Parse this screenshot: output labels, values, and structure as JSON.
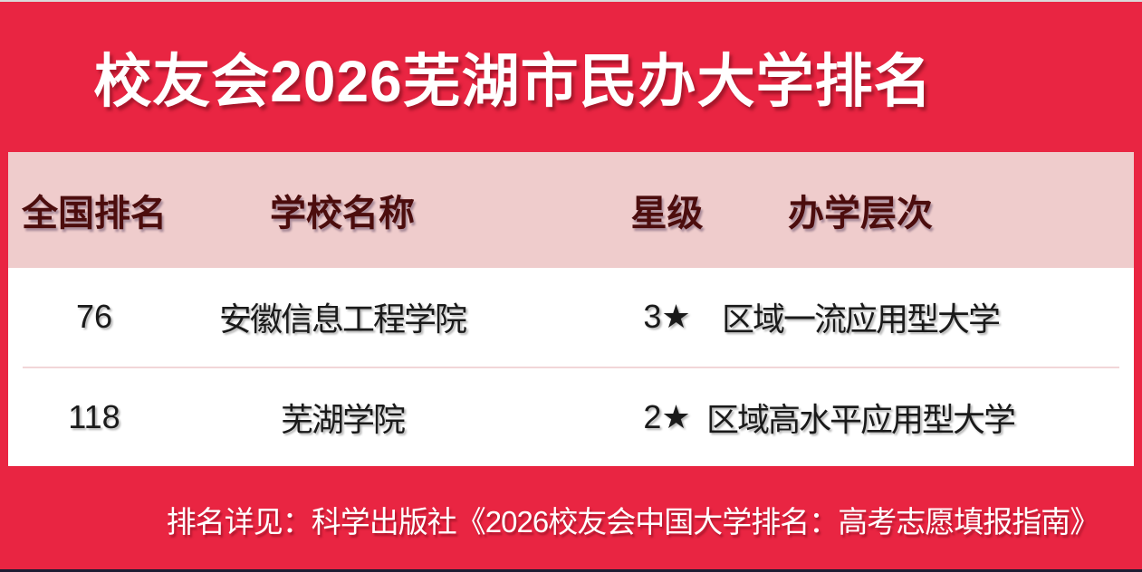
{
  "title": "校友会2026芜湖市民办大学排名",
  "table": {
    "headers": {
      "rank": "全国排名",
      "school": "学校名称",
      "star": "星级",
      "level": "办学层次"
    },
    "rows": [
      {
        "rank": "76",
        "school": "安徽信息工程学院",
        "star": "3★",
        "level": "区域一流应用型大学"
      },
      {
        "rank": "118",
        "school": "芜湖学院",
        "star": "2★",
        "level": "区域高水平应用型大学"
      }
    ]
  },
  "footer": {
    "note": "排名详见：科学出版社《2026校友会中国大学排名：高考志愿填报指南》"
  },
  "colors": {
    "accent_red": "#e92542",
    "header_pink": "#efcccc",
    "header_text_maroon": "#4c0d0d",
    "body_text": "#1a1a1a",
    "panel_white": "#ffffff",
    "divider_pink": "#f2d6d8"
  },
  "chart_data": {
    "type": "table",
    "title": "校友会2026芜湖市民办大学排名",
    "columns": [
      "全国排名",
      "学校名称",
      "星级",
      "办学层次"
    ],
    "rows": [
      [
        "76",
        "安徽信息工程学院",
        "3★",
        "区域一流应用型大学"
      ],
      [
        "118",
        "芜湖学院",
        "2★",
        "区域高水平应用型大学"
      ]
    ],
    "source_note": "排名详见：科学出版社《2026校友会中国大学排名：高考志愿填报指南》"
  }
}
